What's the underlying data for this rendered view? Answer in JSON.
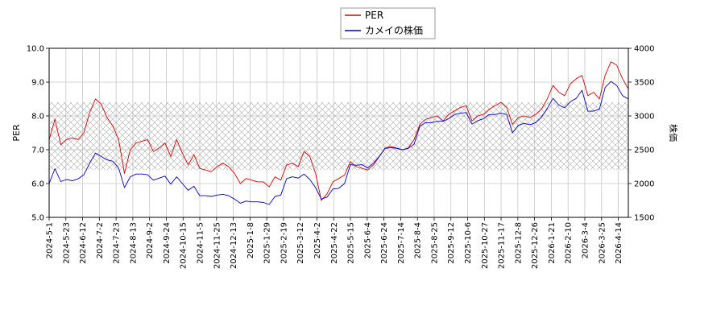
{
  "chart_data": {
    "type": "line",
    "title": "",
    "legend_position": "top-center",
    "grid": true,
    "band": {
      "y1_range": [
        6.4,
        8.4
      ],
      "hatch": "diagonal-cross"
    },
    "x_ticks": [
      "2024-5-1",
      "2024-5-23",
      "2024-6-12",
      "2024-7-2",
      "2024-7-23",
      "2024-8-13",
      "2024-9-2",
      "2024-9-24",
      "2024-10-15",
      "2024-11-5",
      "2024-11-25",
      "2024-12-13",
      "2025-1-8",
      "2025-1-29",
      "2025-2-19",
      "2025-3-12",
      "2025-4-2",
      "2025-4-22",
      "2025-5-15",
      "2025-6-4",
      "2025-6-24",
      "2025-7-14",
      "2025-8-4",
      "2025-8-25",
      "2025-9-12",
      "2025-10-6",
      "2025-10-27",
      "2025-11-17",
      "2025-12-8",
      "2025-12-26",
      "2026-1-21",
      "2026-2-10",
      "2026-3-4",
      "2026-3-25",
      "2026-4-14"
    ],
    "y1": {
      "label": "PER",
      "ticks": [
        "5.0",
        "6.0",
        "7.0",
        "8.0",
        "9.0",
        "10.0"
      ],
      "lim": [
        5.0,
        10.0
      ]
    },
    "y2": {
      "label": "株価",
      "ticks": [
        "1500",
        "2000",
        "2500",
        "3000",
        "3500",
        "4000"
      ],
      "lim": [
        1500,
        4000
      ]
    },
    "series": [
      {
        "name": "PER",
        "axis": "y1",
        "color": "#dd0000",
        "values": [
          7.3,
          7.9,
          7.15,
          7.3,
          7.35,
          7.3,
          7.5,
          8.1,
          8.5,
          8.35,
          7.95,
          7.7,
          7.3,
          6.3,
          7.0,
          7.2,
          7.25,
          7.3,
          6.95,
          7.05,
          7.2,
          6.8,
          7.3,
          6.9,
          6.55,
          6.85,
          6.45,
          6.4,
          6.35,
          6.5,
          6.6,
          6.5,
          6.3,
          6.0,
          6.15,
          6.1,
          6.05,
          6.05,
          5.9,
          6.2,
          6.1,
          6.55,
          6.6,
          6.5,
          6.95,
          6.8,
          6.3,
          5.5,
          5.7,
          6.05,
          6.15,
          6.25,
          6.65,
          6.5,
          6.45,
          6.4,
          6.55,
          6.8,
          7.05,
          7.1,
          7.05,
          7.0,
          7.05,
          7.3,
          7.75,
          7.9,
          7.95,
          8.0,
          7.85,
          8.05,
          8.15,
          8.25,
          8.3,
          7.85,
          8.0,
          8.05,
          8.2,
          8.3,
          8.4,
          8.25,
          7.75,
          7.95,
          8.0,
          7.95,
          8.05,
          8.2,
          8.5,
          8.9,
          8.7,
          8.6,
          8.95,
          9.1,
          9.2,
          8.6,
          8.7,
          8.5,
          9.2,
          9.6,
          9.5,
          9.1,
          8.8
        ]
      },
      {
        "name": "カメイの株価",
        "axis": "y2",
        "color": "#0000cc",
        "values": [
          2000,
          2220,
          2030,
          2060,
          2040,
          2070,
          2130,
          2300,
          2450,
          2400,
          2350,
          2330,
          2230,
          1940,
          2100,
          2140,
          2140,
          2130,
          2050,
          2080,
          2110,
          1990,
          2100,
          2000,
          1900,
          1960,
          1820,
          1820,
          1810,
          1830,
          1840,
          1820,
          1770,
          1710,
          1740,
          1730,
          1730,
          1720,
          1690,
          1810,
          1830,
          2070,
          2100,
          2080,
          2140,
          2060,
          1940,
          1770,
          1800,
          1920,
          1930,
          2000,
          2280,
          2270,
          2280,
          2230,
          2300,
          2400,
          2520,
          2530,
          2520,
          2500,
          2520,
          2580,
          2850,
          2900,
          2900,
          2920,
          2920,
          2960,
          3020,
          3040,
          3050,
          2880,
          2930,
          2960,
          3020,
          3020,
          3040,
          3020,
          2750,
          2860,
          2890,
          2870,
          2900,
          2980,
          3110,
          3260,
          3160,
          3120,
          3210,
          3260,
          3380,
          3070,
          3070,
          3100,
          3420,
          3510,
          3450,
          3300,
          3250
        ]
      }
    ]
  }
}
